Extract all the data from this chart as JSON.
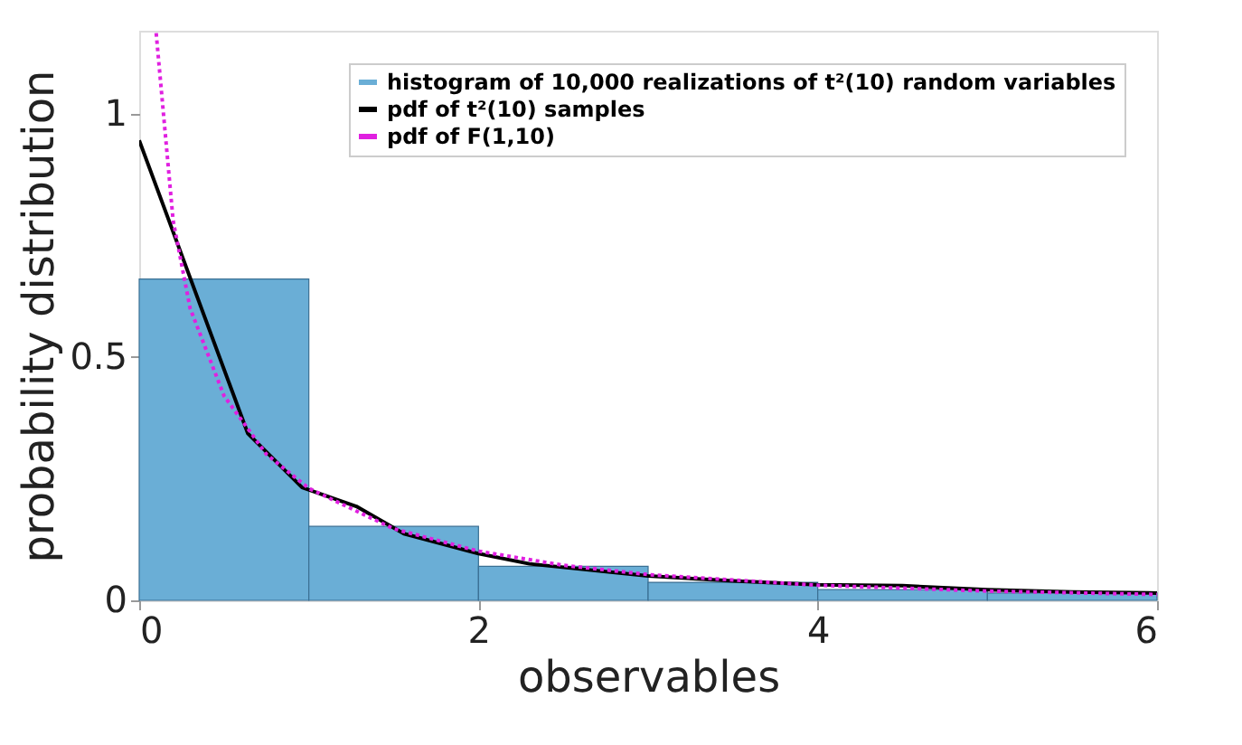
{
  "chart_data": {
    "type": "histogram",
    "xlabel": "observables",
    "ylabel": "probability distribution",
    "bins": [
      0,
      1,
      2,
      3,
      4,
      5,
      6
    ],
    "xlim": [
      0,
      6
    ],
    "xticks": [
      0,
      2,
      4,
      6
    ],
    "ylim": [
      0,
      1.17
    ],
    "yticks": [
      0,
      0.5,
      1
    ],
    "grid": false,
    "legend": "top right",
    "series": [
      {
        "name": "histogram of 10,000 realizations of t²(10) random variables",
        "color": "#6aaed6",
        "values": [
          0.66,
          0.152,
          0.07,
          0.037,
          0.022,
          0.015
        ]
      },
      {
        "type": "line",
        "name": "pdf of t²(10) samples",
        "color": "#000000",
        "line_style": "solid",
        "x": [
          0,
          0.64,
          0.96,
          1.28,
          1.56,
          2.0,
          2.3,
          3.0,
          3.5,
          4.0,
          4.5,
          5.0,
          5.5,
          6.0
        ],
        "values": [
          0.945,
          0.343,
          0.232,
          0.193,
          0.137,
          0.096,
          0.075,
          0.05,
          0.04,
          0.032,
          0.03,
          0.022,
          0.017,
          0.015
        ]
      },
      {
        "type": "line",
        "name": "pdf of F(1,10)",
        "color": "#e020e0",
        "line_style": "dotted",
        "x": [
          0.1,
          0.2,
          0.3,
          0.5,
          0.75,
          1.0,
          1.5,
          2.0,
          2.5,
          3.0,
          4.0,
          5.0,
          6.0
        ],
        "values": [
          1.165,
          0.78,
          0.6,
          0.42,
          0.3,
          0.23,
          0.147,
          0.101,
          0.072,
          0.053,
          0.031,
          0.019,
          0.012
        ]
      }
    ]
  }
}
